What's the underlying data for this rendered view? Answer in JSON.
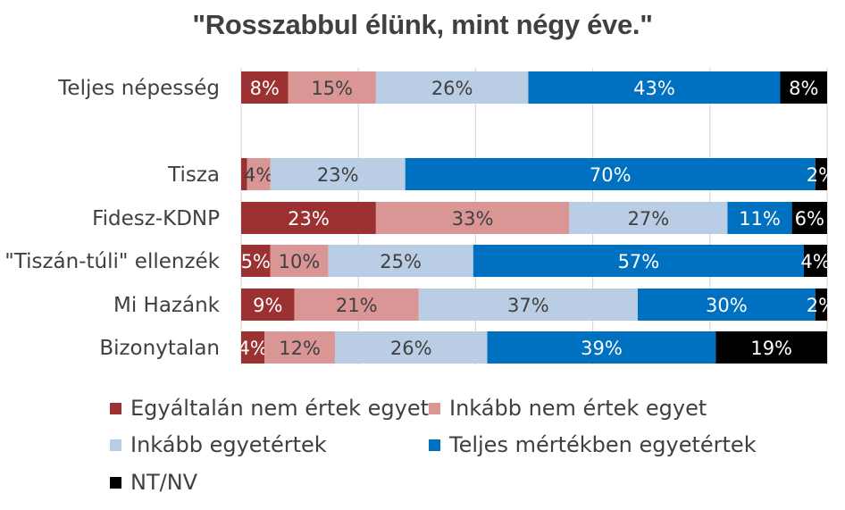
{
  "chart_data": {
    "type": "bar",
    "orientation": "horizontal",
    "stacked": true,
    "title": "\"Rosszabbul élünk, mint négy éve.\"",
    "categories": [
      "Teljes népesség",
      "Tisza",
      "Fidesz-KDNP",
      "\"Tiszán-túli\" ellenzék",
      "Mi Hazánk",
      "Bizonytalan"
    ],
    "series": [
      {
        "name": "Egyáltalán nem értek egyet",
        "color": "#9B3231",
        "text_color": "#ffffff",
        "values": [
          8,
          1,
          23,
          5,
          9,
          4
        ],
        "labels": [
          "8%",
          "",
          "23%",
          "5%",
          "9%",
          "4%"
        ]
      },
      {
        "name": "Inkább nem értek egyet",
        "color": "#D99694",
        "text_color": "#404040",
        "values": [
          15,
          4,
          33,
          10,
          21,
          12
        ],
        "labels": [
          "15%",
          "4%",
          "33%",
          "10%",
          "21%",
          "12%"
        ]
      },
      {
        "name": "Inkább egyetértek",
        "color": "#B9CDE5",
        "text_color": "#404040",
        "values": [
          26,
          23,
          27,
          25,
          37,
          26
        ],
        "labels": [
          "26%",
          "23%",
          "27%",
          "25%",
          "37%",
          "26%"
        ]
      },
      {
        "name": "Teljes mértékben egyetértek",
        "color": "#0070C0",
        "text_color": "#ffffff",
        "values": [
          43,
          70,
          11,
          57,
          30,
          39
        ],
        "labels": [
          "43%",
          "70%",
          "11%",
          "57%",
          "30%",
          "39%"
        ]
      },
      {
        "name": "NT/NV",
        "color": "#000000",
        "text_color": "#ffffff",
        "values": [
          8,
          2,
          6,
          4,
          2,
          19
        ],
        "labels": [
          "8%",
          "2%",
          "6%",
          "4%",
          "2%",
          "19%"
        ]
      }
    ],
    "xlim": [
      0,
      100
    ],
    "grid": true,
    "legend": "bottom"
  }
}
